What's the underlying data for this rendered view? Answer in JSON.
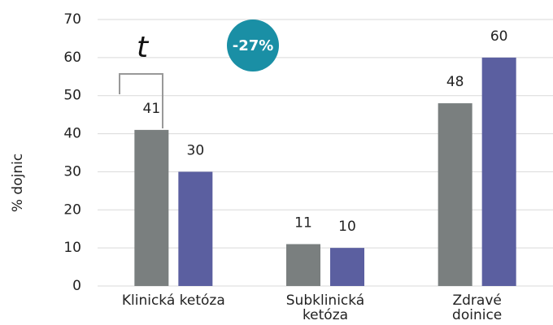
{
  "chart_data": {
    "type": "bar",
    "y_label": "% dojnic",
    "categories": [
      "Klinická ketóza",
      "Subklinická\nketóza",
      "Zdravé\ndoinice"
    ],
    "series": [
      {
        "color": "#7a7f7f",
        "values": [
          41,
          11,
          48
        ]
      },
      {
        "color": "#5b5fa0",
        "values": [
          30,
          10,
          60
        ]
      }
    ],
    "ylim": [
      0,
      70
    ],
    "yticks": [
      0,
      10,
      20,
      30,
      40,
      50,
      60,
      70
    ],
    "grid": true,
    "annotations": [
      "t",
      "-27%"
    ]
  }
}
